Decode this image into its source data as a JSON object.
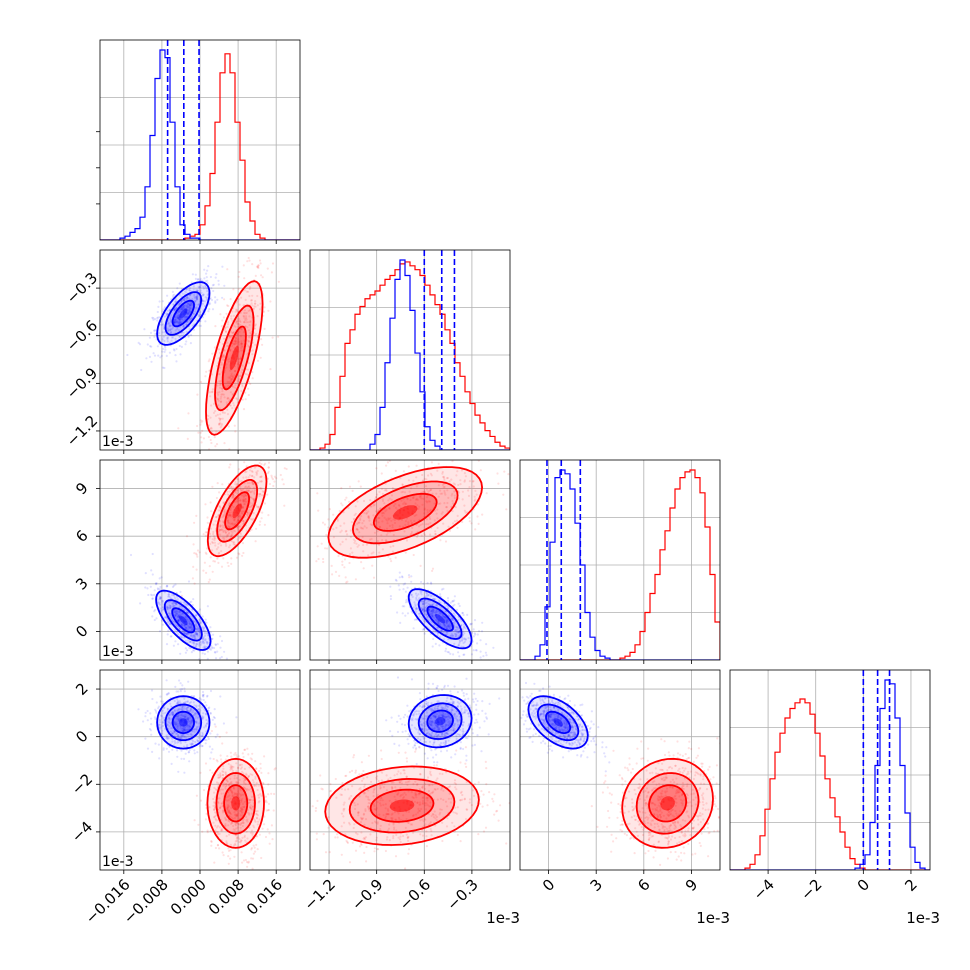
{
  "chart_data": {
    "type": "corner",
    "grid": true,
    "series": [
      {
        "color": "#0000ff"
      },
      {
        "color": "#ff0000"
      }
    ],
    "parameters": [
      {
        "index": 0,
        "range": [
          -0.021,
          0.021
        ],
        "ticks": [
          "-0.016",
          "-0.008",
          "0.000",
          "0.008",
          "0.016"
        ],
        "tick_values": [
          -0.016,
          -0.008,
          0.0,
          0.008,
          0.016
        ],
        "offset_label": ""
      },
      {
        "index": 1,
        "range": [
          -1.32,
          -0.06
        ],
        "ticks": [
          "-1.2",
          "-0.9",
          "-0.6",
          "-0.3"
        ],
        "tick_values": [
          -1.2,
          -0.9,
          -0.6,
          -0.3
        ],
        "offset_label": "1e-3"
      },
      {
        "index": 2,
        "range": [
          -1.8,
          10.8
        ],
        "ticks": [
          "0",
          "3",
          "6",
          "9"
        ],
        "tick_values": [
          0,
          3,
          6,
          9
        ],
        "offset_label": "1e-3"
      },
      {
        "index": 3,
        "range": [
          -5.6,
          2.8
        ],
        "ticks": [
          "-4",
          "-2",
          "0",
          "2"
        ],
        "tick_values": [
          -4,
          -2,
          0,
          2
        ],
        "offset_label": "1e-3"
      }
    ],
    "histograms": [
      {
        "param": 0,
        "quantile_lines": [
          -0.0068,
          -0.0034,
          -0.0002
        ],
        "blue": {
          "edges": [
            -0.021,
            0.021
          ],
          "counts": [
            0,
            0,
            0,
            0,
            1,
            2,
            4,
            6,
            12,
            28,
            55,
            85,
            100,
            96,
            62,
            28,
            8,
            3,
            1,
            1,
            0,
            0,
            0,
            0,
            0,
            0,
            0,
            0,
            0,
            0,
            0,
            0,
            0,
            0,
            0,
            0,
            0,
            0,
            0,
            0
          ]
        },
        "red": {
          "edges": [
            -0.021,
            0.021
          ],
          "counts": [
            0,
            0,
            0,
            0,
            0,
            0,
            0,
            0,
            0,
            0,
            0,
            0,
            0,
            0,
            0,
            0,
            0,
            1,
            2,
            3,
            8,
            18,
            35,
            62,
            88,
            98,
            88,
            62,
            42,
            20,
            10,
            3,
            1,
            0,
            0,
            0,
            0,
            0,
            0,
            0
          ]
        }
      },
      {
        "param": 1,
        "quantile_lines": [
          -0.6,
          -0.49,
          -0.41
        ],
        "blue": {
          "edges": [
            -1.32,
            -0.06
          ],
          "counts": [
            0,
            0,
            0,
            0,
            0,
            0,
            0,
            0,
            0,
            0,
            0,
            0,
            3,
            8,
            22,
            45,
            68,
            88,
            98,
            90,
            72,
            50,
            30,
            12,
            5,
            2,
            0,
            0,
            0,
            0,
            0,
            0,
            0,
            0,
            0,
            0,
            0,
            0,
            0,
            0
          ]
        },
        "red": {
          "edges": [
            -1.32,
            -0.06
          ],
          "counts": [
            0,
            0,
            1,
            3,
            8,
            22,
            38,
            55,
            62,
            70,
            74,
            78,
            80,
            82,
            85,
            88,
            90,
            93,
            96,
            97,
            95,
            93,
            90,
            85,
            80,
            75,
            70,
            62,
            55,
            45,
            38,
            30,
            24,
            18,
            14,
            10,
            7,
            4,
            2,
            1
          ]
        }
      },
      {
        "param": 2,
        "quantile_lines": [
          -0.1,
          0.8,
          2.0
        ],
        "blue": {
          "edges": [
            -1.8,
            10.8
          ],
          "counts": [
            0,
            0,
            0,
            2,
            8,
            28,
            62,
            96,
            100,
            98,
            90,
            72,
            50,
            25,
            12,
            5,
            2,
            1,
            0,
            0,
            0,
            0,
            0,
            0,
            0,
            0,
            0,
            0,
            0,
            0,
            0,
            0,
            0,
            0,
            0,
            0,
            0,
            0,
            0,
            0
          ]
        },
        "red": {
          "edges": [
            -1.8,
            10.8
          ],
          "counts": [
            0,
            0,
            0,
            0,
            0,
            0,
            0,
            0,
            0,
            0,
            0,
            0,
            0,
            0,
            0,
            0,
            0,
            0,
            0,
            0,
            1,
            2,
            4,
            8,
            15,
            25,
            35,
            45,
            58,
            68,
            80,
            90,
            96,
            99,
            100,
            96,
            88,
            70,
            45,
            20
          ]
        }
      },
      {
        "param": 3,
        "quantile_lines": [
          0.0,
          0.6,
          1.1
        ],
        "blue": {
          "edges": [
            -5.6,
            2.8
          ],
          "counts": [
            0,
            0,
            0,
            0,
            0,
            0,
            0,
            0,
            0,
            0,
            0,
            0,
            0,
            0,
            0,
            0,
            0,
            0,
            0,
            0,
            0,
            0,
            0,
            0,
            0,
            1,
            3,
            8,
            25,
            55,
            85,
            100,
            98,
            80,
            55,
            30,
            12,
            4,
            1,
            0
          ]
        },
        "red": {
          "edges": [
            -5.6,
            2.8
          ],
          "counts": [
            0,
            0,
            0,
            1,
            3,
            8,
            18,
            32,
            48,
            62,
            72,
            80,
            85,
            88,
            90,
            88,
            82,
            72,
            60,
            48,
            38,
            28,
            20,
            12,
            6,
            3,
            1,
            0,
            0,
            0,
            0,
            0,
            0,
            0,
            0,
            0,
            0,
            0,
            0,
            0
          ]
        }
      }
    ],
    "pairs": [
      {
        "x": 0,
        "y": 1,
        "blue": {
          "mean": [
            -0.0035,
            -0.46
          ],
          "sd": [
            0.0025,
            0.09
          ],
          "rho": 0.65
        },
        "red": {
          "mean": [
            0.0072,
            -0.74
          ],
          "sd": [
            0.0027,
            0.22
          ],
          "rho": 0.7
        }
      },
      {
        "x": 0,
        "y": 2,
        "blue": {
          "mean": [
            -0.0035,
            0.7
          ],
          "sd": [
            0.0026,
            0.85
          ],
          "rho": -0.7
        },
        "red": {
          "mean": [
            0.0078,
            7.6
          ],
          "sd": [
            0.0028,
            1.3
          ],
          "rho": 0.65
        }
      },
      {
        "x": 1,
        "y": 2,
        "blue": {
          "mean": [
            -0.5,
            0.8
          ],
          "sd": [
            0.09,
            0.85
          ],
          "rho": -0.72
        },
        "red": {
          "mean": [
            -0.72,
            7.5
          ],
          "sd": [
            0.22,
            1.3
          ],
          "rho": 0.55
        }
      },
      {
        "x": 0,
        "y": 3,
        "blue": {
          "mean": [
            -0.0035,
            0.6
          ],
          "sd": [
            0.0025,
            0.5
          ],
          "rho": 0.0
        },
        "red": {
          "mean": [
            0.0075,
            -2.8
          ],
          "sd": [
            0.0027,
            0.85
          ],
          "rho": 0.0
        }
      },
      {
        "x": 1,
        "y": 3,
        "blue": {
          "mean": [
            -0.5,
            0.65
          ],
          "sd": [
            0.09,
            0.5
          ],
          "rho": 0.1
        },
        "red": {
          "mean": [
            -0.74,
            -2.9
          ],
          "sd": [
            0.22,
            0.75
          ],
          "rho": 0.15
        }
      },
      {
        "x": 2,
        "y": 3,
        "blue": {
          "mean": [
            0.6,
            0.6
          ],
          "sd": [
            0.85,
            0.5
          ],
          "rho": -0.5
        },
        "red": {
          "mean": [
            7.5,
            -2.8
          ],
          "sd": [
            1.3,
            0.85
          ],
          "rho": 0.1
        }
      }
    ]
  }
}
